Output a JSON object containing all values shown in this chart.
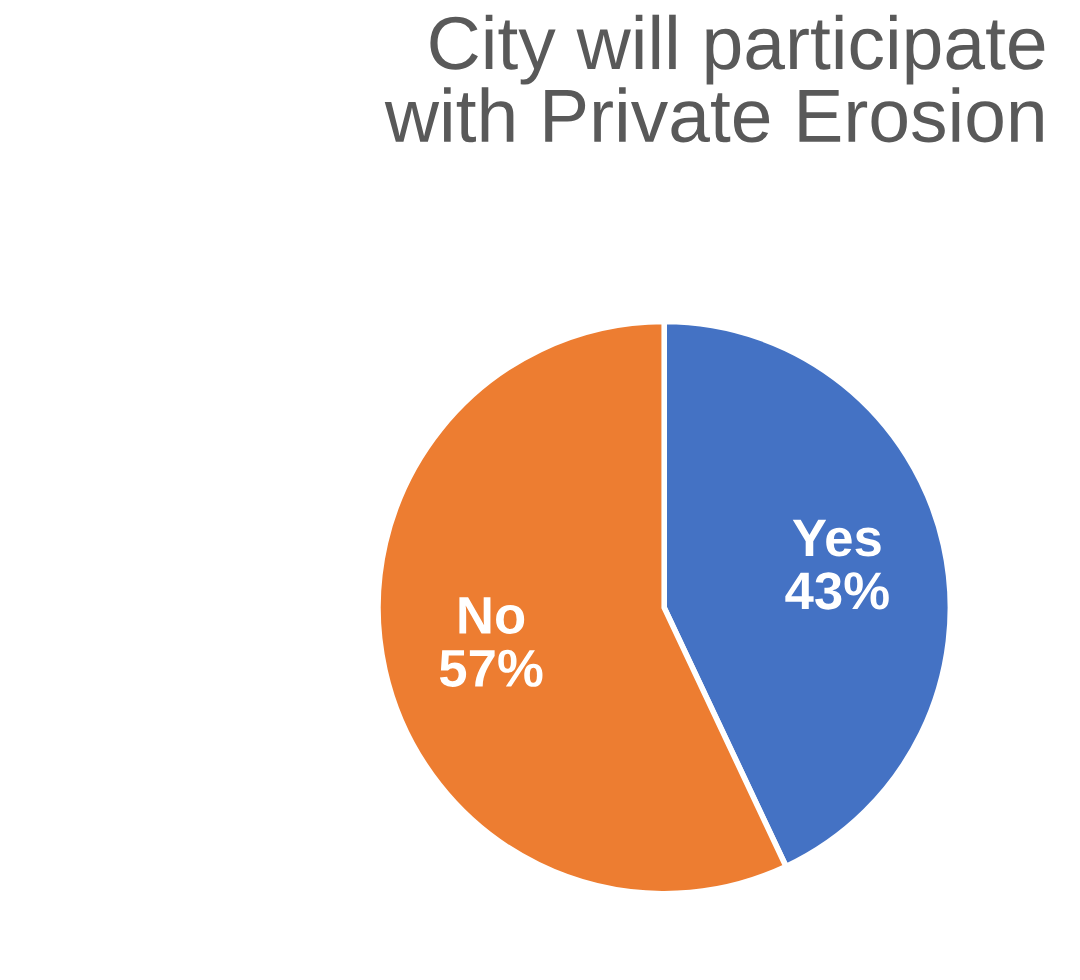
{
  "chart_data": {
    "type": "pie",
    "title": "City will participate\nwith Private Erosion",
    "categories": [
      "Yes",
      "No"
    ],
    "values": [
      43,
      57
    ],
    "colors": [
      "#4472c4",
      "#ed7d31"
    ],
    "value_labels": [
      "43%",
      "57%"
    ]
  }
}
